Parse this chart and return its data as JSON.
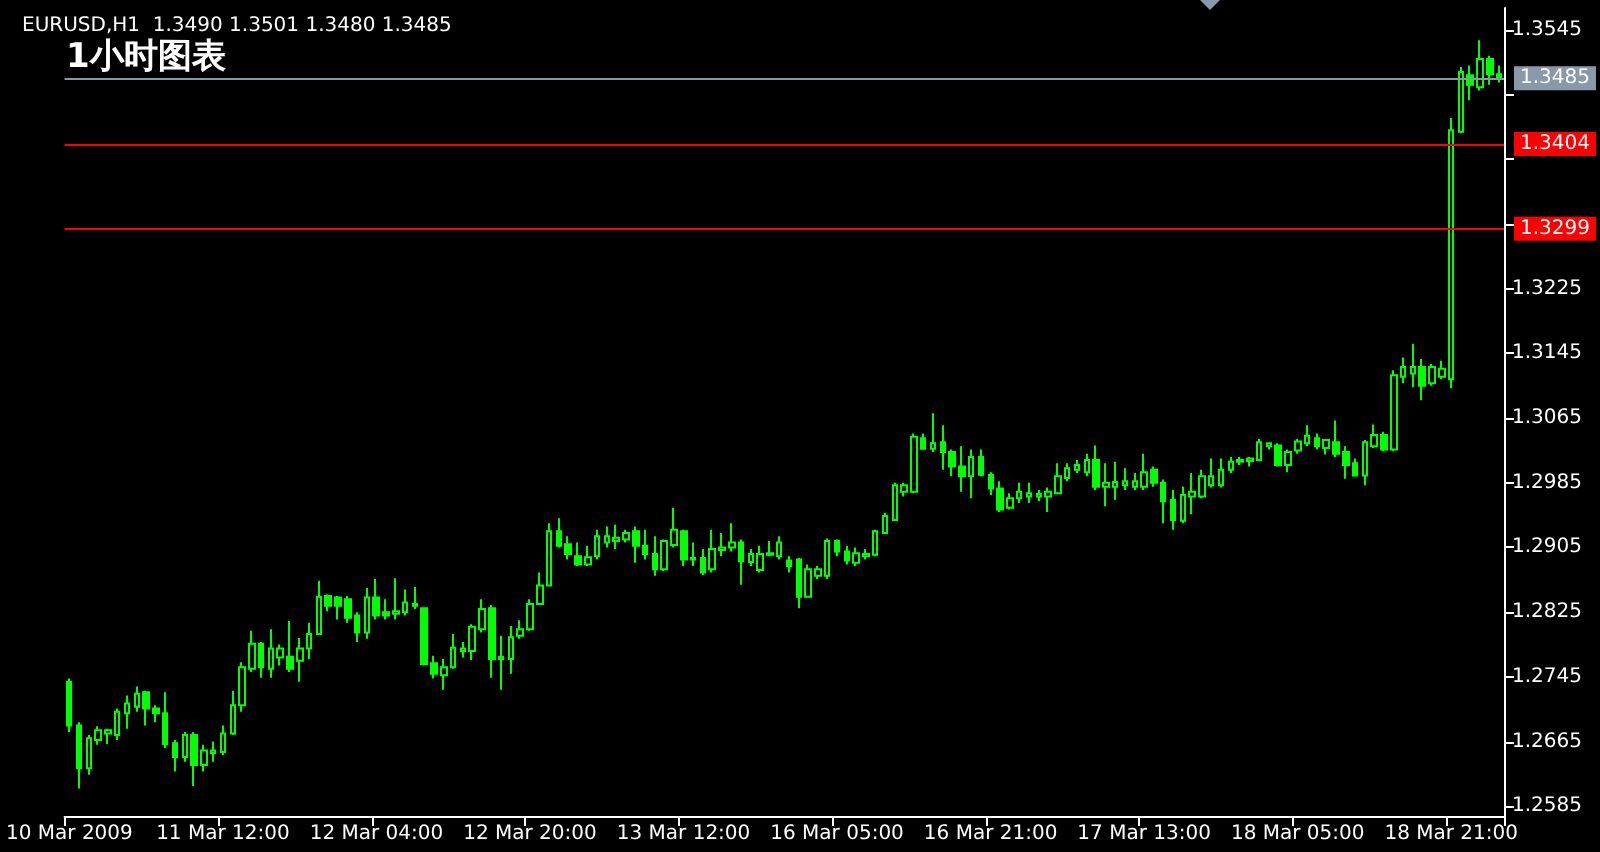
{
  "chart_data": {
    "type": "candlestick",
    "title": "EURUSD,H1  1.3490 1.3501 1.3480 1.3485",
    "subtitle": "1小时图表",
    "color": "#00ff00",
    "categories": [
      "10 Mar 2009",
      null,
      null,
      null,
      null,
      null,
      null,
      null,
      null,
      null,
      null,
      null,
      null,
      null,
      null,
      null,
      "11 Mar 12:00",
      null,
      null,
      null,
      null,
      null,
      null,
      null,
      null,
      null,
      null,
      null,
      null,
      null,
      null,
      null,
      "12 Mar 04:00",
      null,
      null,
      null,
      null,
      null,
      null,
      null,
      null,
      null,
      null,
      null,
      null,
      null,
      null,
      null,
      "12 Mar 20:00",
      null,
      null,
      null,
      null,
      null,
      null,
      null,
      null,
      null,
      null,
      null,
      null,
      null,
      null,
      null,
      "13 Mar 12:00",
      null,
      null,
      null,
      null,
      null,
      null,
      null,
      null,
      null,
      null,
      null,
      null,
      null,
      null,
      null,
      "16 Mar 05:00",
      null,
      null,
      null,
      null,
      null,
      null,
      null,
      null,
      null,
      null,
      null,
      null,
      null,
      null,
      null,
      "16 Mar 21:00",
      null,
      null,
      null,
      null,
      null,
      null,
      null,
      null,
      null,
      null,
      null,
      null,
      null,
      null,
      null,
      "17 Mar 13:00",
      null,
      null,
      null,
      null,
      null,
      null,
      null,
      null,
      null,
      null,
      null,
      null,
      null,
      null,
      null,
      "18 Mar 05:00",
      null,
      null,
      null,
      null,
      null,
      null,
      null,
      null,
      null,
      null,
      null,
      null,
      null,
      null,
      null,
      "18 Mar 21:00",
      null,
      null,
      null,
      null,
      null
    ],
    "ohlc": [
      [
        1.2739,
        1.2743,
        1.2677,
        1.2685
      ],
      [
        1.2685,
        1.2689,
        1.2607,
        1.2632
      ],
      [
        1.2632,
        1.2673,
        1.2624,
        1.2669
      ],
      [
        1.2667,
        1.2684,
        1.2661,
        1.2679
      ],
      [
        1.2675,
        1.2681,
        1.2662,
        1.2679
      ],
      [
        1.2673,
        1.2706,
        1.2667,
        1.2702
      ],
      [
        1.27,
        1.2722,
        1.2681,
        1.2712
      ],
      [
        1.2708,
        1.2733,
        1.2702,
        1.2724
      ],
      [
        1.2726,
        1.2728,
        1.2685,
        1.2706
      ],
      [
        1.2706,
        1.271,
        1.2689,
        1.27
      ],
      [
        1.27,
        1.2726,
        1.2657,
        1.2662
      ],
      [
        1.2663,
        1.2667,
        1.2628,
        1.2646
      ],
      [
        1.2646,
        1.2677,
        1.264,
        1.2673
      ],
      [
        1.2673,
        1.2677,
        1.261,
        1.2636
      ],
      [
        1.2636,
        1.2661,
        1.2628,
        1.2654
      ],
      [
        1.2651,
        1.2665,
        1.264,
        1.2654
      ],
      [
        1.2652,
        1.2685,
        1.2648,
        1.2675
      ],
      [
        1.2675,
        1.2728,
        1.2673,
        1.271
      ],
      [
        1.271,
        1.2763,
        1.2702,
        1.2757
      ],
      [
        1.2755,
        1.2802,
        1.2751,
        1.2786
      ],
      [
        1.2786,
        1.2788,
        1.2744,
        1.2757
      ],
      [
        1.2755,
        1.2804,
        1.2744,
        1.278
      ],
      [
        1.2769,
        1.2785,
        1.2759,
        1.278
      ],
      [
        1.277,
        1.2814,
        1.2751,
        1.2755
      ],
      [
        1.2765,
        1.2793,
        1.2739,
        1.278
      ],
      [
        1.278,
        1.2812,
        1.2767,
        1.2798
      ],
      [
        1.2798,
        1.2864,
        1.2798,
        1.2844
      ],
      [
        1.2845,
        1.2847,
        1.2826,
        1.2833
      ],
      [
        1.2843,
        1.2845,
        1.2816,
        1.2833
      ],
      [
        1.2841,
        1.2845,
        1.2812,
        1.2818
      ],
      [
        1.2821,
        1.2825,
        1.2788,
        1.28
      ],
      [
        1.28,
        1.2855,
        1.2792,
        1.2843
      ],
      [
        1.2843,
        1.2866,
        1.2816,
        1.2821
      ],
      [
        1.2825,
        1.2841,
        1.2816,
        1.2821
      ],
      [
        1.2823,
        1.2867,
        1.2816,
        1.2826
      ],
      [
        1.2825,
        1.2853,
        1.2821,
        1.2837
      ],
      [
        1.2835,
        1.2856,
        1.2829,
        1.2833
      ],
      [
        1.283,
        1.283,
        1.2759,
        1.2761
      ],
      [
        1.2762,
        1.2771,
        1.2743,
        1.2749
      ],
      [
        1.2747,
        1.2767,
        1.2729,
        1.2757
      ],
      [
        1.2757,
        1.2798,
        1.2755,
        1.2781
      ],
      [
        1.2777,
        1.2788,
        1.2769,
        1.278
      ],
      [
        1.2777,
        1.281,
        1.2766,
        1.2807
      ],
      [
        1.2804,
        1.2841,
        1.28,
        1.2829
      ],
      [
        1.283,
        1.2834,
        1.2744,
        1.2767
      ],
      [
        1.277,
        1.2796,
        1.2729,
        1.2767
      ],
      [
        1.2767,
        1.2808,
        1.2749,
        1.2794
      ],
      [
        1.2796,
        1.2815,
        1.2792,
        1.2804
      ],
      [
        1.2804,
        1.2841,
        1.2802,
        1.2835
      ],
      [
        1.2835,
        1.2874,
        1.2834,
        1.2858
      ],
      [
        1.2858,
        1.2935,
        1.2858,
        1.2925
      ],
      [
        1.2925,
        1.2941,
        1.2905,
        1.2907
      ],
      [
        1.2909,
        1.2919,
        1.289,
        1.2897
      ],
      [
        1.2894,
        1.2911,
        1.2882,
        1.2884
      ],
      [
        1.2884,
        1.2907,
        1.2882,
        1.2893
      ],
      [
        1.2894,
        1.2927,
        1.289,
        1.2919
      ],
      [
        1.2911,
        1.2931,
        1.2905,
        1.2919
      ],
      [
        1.2913,
        1.2933,
        1.2903,
        1.2917
      ],
      [
        1.2915,
        1.2927,
        1.2911,
        1.2923
      ],
      [
        1.2925,
        1.2931,
        1.2886,
        1.2907
      ],
      [
        1.2907,
        1.2927,
        1.289,
        1.2897
      ],
      [
        1.2897,
        1.2919,
        1.287,
        1.2878
      ],
      [
        1.2878,
        1.2915,
        1.2876,
        1.2913
      ],
      [
        1.2908,
        1.2954,
        1.2905,
        1.2927
      ],
      [
        1.2925,
        1.2927,
        1.2882,
        1.289
      ],
      [
        1.2892,
        1.2911,
        1.2882,
        1.289
      ],
      [
        1.2892,
        1.2903,
        1.2871,
        1.2874
      ],
      [
        1.2878,
        1.2927,
        1.2874,
        1.2903
      ],
      [
        1.2902,
        1.2923,
        1.2894,
        1.2905
      ],
      [
        1.2905,
        1.2935,
        1.29,
        1.2911
      ],
      [
        1.2911,
        1.2915,
        1.2859,
        1.2888
      ],
      [
        1.2887,
        1.2903,
        1.2882,
        1.2897
      ],
      [
        1.2877,
        1.2907,
        1.2874,
        1.2897
      ],
      [
        1.2896,
        1.2913,
        1.2894,
        1.2898
      ],
      [
        1.2894,
        1.2919,
        1.289,
        1.2911
      ],
      [
        1.2889,
        1.2894,
        1.2874,
        1.2882
      ],
      [
        1.289,
        1.2892,
        1.283,
        1.2844
      ],
      [
        1.2844,
        1.2884,
        1.2843,
        1.2878
      ],
      [
        1.287,
        1.2882,
        1.2866,
        1.2878
      ],
      [
        1.287,
        1.2916,
        1.2866,
        1.2913
      ],
      [
        1.2913,
        1.2915,
        1.2894,
        1.29
      ],
      [
        1.29,
        1.2907,
        1.2884,
        1.2889
      ],
      [
        1.2886,
        1.2905,
        1.2882,
        1.2898
      ],
      [
        1.2894,
        1.2903,
        1.289,
        1.2897
      ],
      [
        1.2896,
        1.2927,
        1.2894,
        1.2925
      ],
      [
        1.2923,
        1.2948,
        1.2923,
        1.2944
      ],
      [
        1.2939,
        1.2985,
        1.2939,
        1.2982
      ],
      [
        1.2974,
        1.2985,
        1.2968,
        1.2982
      ],
      [
        1.2974,
        1.3046,
        1.2972,
        1.3042
      ],
      [
        1.304,
        1.3046,
        1.3026,
        1.3027
      ],
      [
        1.3027,
        1.3071,
        1.3023,
        1.3034
      ],
      [
        1.3035,
        1.3056,
        1.3001,
        1.3023
      ],
      [
        1.3023,
        1.3026,
        1.2993,
        1.3005
      ],
      [
        1.3005,
        1.303,
        1.2974,
        1.2993
      ],
      [
        1.2993,
        1.3026,
        1.2966,
        1.3017
      ],
      [
        1.3017,
        1.3026,
        1.2993,
        1.2995
      ],
      [
        1.2995,
        1.2998,
        1.297,
        1.2978
      ],
      [
        1.2978,
        1.2987,
        1.2949,
        1.2952
      ],
      [
        1.2954,
        1.2972,
        1.2952,
        1.2966
      ],
      [
        1.2966,
        1.2985,
        1.296,
        1.2974
      ],
      [
        1.2968,
        1.2985,
        1.296,
        1.2972
      ],
      [
        1.2968,
        1.2976,
        1.2962,
        1.2971
      ],
      [
        1.2968,
        1.2979,
        1.2949,
        1.2974
      ],
      [
        1.2972,
        1.3009,
        1.2971,
        1.2993
      ],
      [
        1.2991,
        1.3009,
        1.2987,
        1.3003
      ],
      [
        1.3001,
        1.3013,
        1.2997,
        1.3007
      ],
      [
        1.2998,
        1.3021,
        1.2993,
        1.3013
      ],
      [
        1.3013,
        1.3031,
        1.2976,
        1.298
      ],
      [
        1.298,
        1.3009,
        1.2956,
        1.2985
      ],
      [
        1.298,
        1.3011,
        1.2964,
        1.2986
      ],
      [
        1.2982,
        1.3003,
        1.2976,
        1.2987
      ],
      [
        1.298,
        1.2997,
        1.2976,
        1.2987
      ],
      [
        1.298,
        1.3021,
        1.2976,
        1.2998
      ],
      [
        1.3001,
        1.3005,
        1.298,
        1.2985
      ],
      [
        1.2985,
        1.2989,
        1.2935,
        1.2962
      ],
      [
        1.2964,
        1.2976,
        1.2927,
        1.2939
      ],
      [
        1.2938,
        1.298,
        1.2935,
        1.297
      ],
      [
        1.2968,
        1.2997,
        1.2946,
        1.2974
      ],
      [
        1.2968,
        1.3001,
        1.2966,
        1.2993
      ],
      [
        1.2982,
        1.3015,
        1.2979,
        1.2993
      ],
      [
        1.2982,
        1.3015,
        1.2979,
        1.3001
      ],
      [
        1.3001,
        1.3017,
        1.2997,
        1.3011
      ],
      [
        1.3011,
        1.3017,
        1.3007,
        1.3013
      ],
      [
        1.3012,
        1.3017,
        1.3005,
        1.3015
      ],
      [
        1.3013,
        1.3039,
        1.3012,
        1.3035
      ],
      [
        1.303,
        1.3035,
        1.3026,
        1.3034
      ],
      [
        1.3031,
        1.3034,
        1.3005,
        1.3007
      ],
      [
        1.3007,
        1.3026,
        1.2998,
        1.3023
      ],
      [
        1.3025,
        1.3039,
        1.3021,
        1.3036
      ],
      [
        1.3034,
        1.3056,
        1.303,
        1.3043
      ],
      [
        1.304,
        1.3046,
        1.3026,
        1.303
      ],
      [
        1.3028,
        1.3039,
        1.302,
        1.3038
      ],
      [
        1.3035,
        1.3062,
        1.3017,
        1.3021
      ],
      [
        1.3023,
        1.303,
        1.299,
        1.3007
      ],
      [
        1.3009,
        1.3015,
        1.2993,
        1.2994
      ],
      [
        1.2994,
        1.3038,
        1.2982,
        1.3035
      ],
      [
        1.303,
        1.3057,
        1.3028,
        1.3044
      ],
      [
        1.3044,
        1.3048,
        1.3024,
        1.3026
      ],
      [
        1.3026,
        1.3124,
        1.3024,
        1.3118
      ],
      [
        1.3116,
        1.314,
        1.3108,
        1.3128
      ],
      [
        1.312,
        1.3157,
        1.3103,
        1.3128
      ],
      [
        1.3128,
        1.3138,
        1.3087,
        1.3105
      ],
      [
        1.3108,
        1.3132,
        1.3105,
        1.3128
      ],
      [
        1.3116,
        1.3136,
        1.3113,
        1.3126
      ],
      [
        1.3113,
        1.3436,
        1.3102,
        1.3421
      ],
      [
        1.3419,
        1.3499,
        1.3417,
        1.3493
      ],
      [
        1.3489,
        1.3501,
        1.3458,
        1.3477
      ],
      [
        1.3474,
        1.3532,
        1.347,
        1.3509
      ],
      [
        1.3509,
        1.3513,
        1.3477,
        1.349
      ],
      [
        1.349,
        1.3501,
        1.348,
        1.3485
      ]
    ],
    "ylim": [
      1.2573,
      1.3572
    ],
    "yticks": [
      1.2585,
      1.2665,
      1.2745,
      1.2825,
      1.2905,
      1.2985,
      1.3065,
      1.3145,
      1.3225,
      {
        "value": 1.3305,
        "label": null
      },
      {
        "value": 1.3385,
        "label": null
      },
      {
        "value": 1.3465,
        "label": null
      },
      1.3545
    ],
    "ref_lines": [
      {
        "axis": "y",
        "value": 1.3485,
        "label": "1.3485",
        "color": "#8899aa"
      },
      {
        "axis": "y",
        "value": 1.3404,
        "label": "1.3404",
        "color": "#ff0000"
      },
      {
        "axis": "y",
        "value": 1.3299,
        "label": "1.3299",
        "color": "#ff0000"
      }
    ]
  }
}
